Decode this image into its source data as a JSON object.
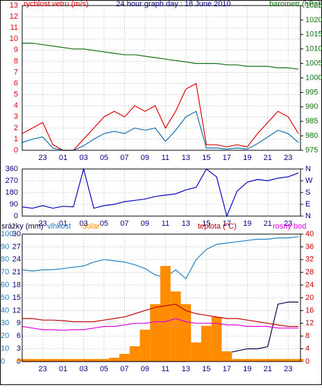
{
  "chart_data": [
    {
      "type": "line",
      "title": "24 hour graph day : 18 June 2010",
      "ylabel": "rychlost vetru (m/s)",
      "y2label": "barometr (hPa)",
      "x": [
        21,
        22,
        23,
        24,
        25,
        26,
        27,
        28,
        29,
        30,
        31,
        32,
        33,
        34,
        35,
        36,
        37,
        38,
        39,
        40,
        41,
        42,
        43,
        44,
        45,
        46,
        47,
        48
      ],
      "xlim": [
        21,
        48.2
      ],
      "xticks": [
        {
          "value": 23,
          "label": "23"
        },
        {
          "value": 25,
          "label": "01"
        },
        {
          "value": 27,
          "label": "03"
        },
        {
          "value": 29,
          "label": "05"
        },
        {
          "value": 31,
          "label": "07"
        },
        {
          "value": 33,
          "label": "09"
        },
        {
          "value": 35,
          "label": "11"
        },
        {
          "value": 37,
          "label": "13"
        },
        {
          "value": 39,
          "label": "15"
        },
        {
          "value": 41,
          "label": "17"
        },
        {
          "value": 43,
          "label": "19"
        },
        {
          "value": 45,
          "label": "21"
        },
        {
          "value": 47,
          "label": "23"
        }
      ],
      "ylim": [
        0,
        13
      ],
      "yticks": [
        0,
        1,
        2,
        3,
        4,
        5,
        6,
        7,
        8,
        9,
        10,
        11,
        12,
        13
      ],
      "y2lim": [
        975,
        1025
      ],
      "y2ticks": [
        975,
        980,
        985,
        990,
        995,
        1000,
        1005,
        1010,
        1015,
        1020,
        1025
      ],
      "grid": true,
      "ycolor": "#e00000",
      "y2color": "#107010",
      "series": [
        {
          "color": "#e00000",
          "values": [
            1.5,
            2,
            2.5,
            0.5,
            0,
            0,
            1,
            2,
            3,
            3.5,
            3,
            4,
            3.5,
            4,
            2,
            3.5,
            5.5,
            6,
            0.5,
            0.5,
            0.3,
            0.5,
            0.3,
            1.5,
            2.5,
            3.5,
            3,
            1.5
          ]
        },
        {
          "color": "#1070b0",
          "values": [
            0.7,
            1,
            1.2,
            0.2,
            0,
            0,
            0.4,
            1,
            1.5,
            1.7,
            1.5,
            2,
            1.8,
            2,
            0.8,
            1.8,
            3,
            3.5,
            0.2,
            0.2,
            0.1,
            0.2,
            0.1,
            0.6,
            1.2,
            1.8,
            1.5,
            0.7
          ]
        },
        {
          "color": "#107010",
          "axis": "y2",
          "values": [
            1012,
            1012,
            1011.5,
            1011,
            1010.5,
            1010,
            1010,
            1009.5,
            1009,
            1008.5,
            1008,
            1008,
            1007.5,
            1007,
            1006.5,
            1006,
            1005.5,
            1005,
            1005,
            1005,
            1004.5,
            1004.5,
            1004,
            1004,
            1004,
            1003.5,
            1003.5,
            1003
          ]
        }
      ]
    },
    {
      "type": "line",
      "x": [
        21,
        22,
        23,
        24,
        25,
        26,
        27,
        28,
        29,
        30,
        31,
        32,
        33,
        34,
        35,
        36,
        37,
        38,
        39,
        40,
        41,
        42,
        43,
        44,
        45,
        46,
        47,
        48
      ],
      "xlim": [
        21,
        48.2
      ],
      "xticks": [
        {
          "value": 23,
          "label": "23"
        },
        {
          "value": 25,
          "label": "01"
        },
        {
          "value": 27,
          "label": "03"
        },
        {
          "value": 29,
          "label": "05"
        },
        {
          "value": 31,
          "label": "07"
        },
        {
          "value": 33,
          "label": "09"
        },
        {
          "value": 35,
          "label": "11"
        },
        {
          "value": 37,
          "label": "13"
        },
        {
          "value": 39,
          "label": "15"
        },
        {
          "value": 41,
          "label": "17"
        },
        {
          "value": 43,
          "label": "19"
        },
        {
          "value": 45,
          "label": "21"
        },
        {
          "value": 47,
          "label": "23"
        }
      ],
      "ylim": [
        0,
        360
      ],
      "yticks": [
        0,
        90,
        180,
        270,
        360
      ],
      "y2lim": [
        0,
        360
      ],
      "y2ticks": [
        {
          "value": 0,
          "label": "N"
        },
        {
          "value": 90,
          "label": "E"
        },
        {
          "value": 180,
          "label": "S"
        },
        {
          "value": 270,
          "label": "W"
        },
        {
          "value": 360,
          "label": "N"
        }
      ],
      "grid": true,
      "ycolor": "#000080",
      "y2color": "#000080",
      "series": [
        {
          "color": "#0000c0",
          "values": [
            70,
            60,
            80,
            60,
            75,
            70,
            360,
            60,
            80,
            90,
            110,
            120,
            130,
            150,
            160,
            170,
            200,
            220,
            360,
            300,
            0,
            190,
            260,
            280,
            270,
            290,
            300,
            330
          ]
        }
      ]
    },
    {
      "type": "line",
      "x": [
        21,
        22,
        23,
        24,
        25,
        26,
        27,
        28,
        29,
        30,
        31,
        32,
        33,
        34,
        35,
        36,
        37,
        38,
        39,
        40,
        41,
        42,
        43,
        44,
        45,
        46,
        47,
        48
      ],
      "xlim": [
        21,
        48.2
      ],
      "xticks": [
        {
          "value": 23,
          "label": "23"
        },
        {
          "value": 25,
          "label": "01"
        },
        {
          "value": 27,
          "label": "03"
        },
        {
          "value": 29,
          "label": "05"
        },
        {
          "value": 31,
          "label": "07"
        },
        {
          "value": 33,
          "label": "09"
        },
        {
          "value": 35,
          "label": "11"
        },
        {
          "value": 37,
          "label": "13"
        },
        {
          "value": 39,
          "label": "15"
        },
        {
          "value": 41,
          "label": "17"
        },
        {
          "value": 43,
          "label": "19"
        },
        {
          "value": 45,
          "label": "21"
        },
        {
          "value": 47,
          "label": "23"
        }
      ],
      "ylim": [
        0,
        100
      ],
      "yticks": [
        0,
        10,
        20,
        30,
        40,
        50,
        60,
        70,
        80,
        90,
        100
      ],
      "y3lim": [
        0,
        30
      ],
      "y3ticks": [
        0,
        3,
        6,
        9,
        12,
        15,
        18,
        21,
        24,
        27,
        30
      ],
      "y2lim": [
        0,
        40
      ],
      "y2ticks": [
        0,
        4,
        8,
        12,
        16,
        20,
        24,
        28,
        32,
        36,
        40
      ],
      "grid": true,
      "ycolor": "#2080c0",
      "y3color": "#000080",
      "y2color": "#c00000",
      "series": [
        {
          "name": "srážky (mm)",
          "color": "#000040",
          "axis": "y3",
          "values": [
            0,
            0,
            0,
            0,
            0,
            0,
            0,
            0,
            0,
            0,
            0,
            0,
            0,
            0,
            0,
            0,
            0,
            0.5,
            1,
            1.5,
            2,
            2.5,
            3,
            3,
            3.5,
            13.5,
            14,
            14
          ]
        },
        {
          "name": "vlhkost",
          "color": "#2080c0",
          "values": [
            72,
            71,
            72,
            72,
            73,
            74,
            75,
            78,
            80,
            79,
            78,
            76,
            73,
            68,
            66,
            72,
            65,
            80,
            88,
            92,
            93,
            94,
            95,
            96,
            96,
            97,
            97,
            98
          ]
        },
        {
          "name": "Solar",
          "type": "bar",
          "color": "#ff8c00",
          "values": [
            2,
            2,
            2,
            2,
            2,
            2,
            2,
            2,
            2,
            3,
            6,
            12,
            25,
            45,
            75,
            55,
            45,
            15,
            28,
            35,
            8,
            2,
            2,
            2,
            2,
            2,
            2,
            2
          ]
        },
        {
          "name": "teplota (°C)",
          "color": "#c00000",
          "axis": "y2",
          "values": [
            13.5,
            13.5,
            13,
            13,
            12.8,
            12.5,
            12.5,
            12.5,
            13,
            13.5,
            14,
            15,
            16,
            17,
            17.5,
            18,
            16,
            15,
            14.5,
            14,
            13.5,
            13.5,
            13,
            12.5,
            12,
            11.5,
            11,
            11
          ]
        },
        {
          "name": "rosný bod",
          "color": "#e000e0",
          "axis": "y2",
          "values": [
            11,
            10.5,
            10,
            10,
            9.8,
            10,
            10,
            10.5,
            11,
            11,
            11.5,
            12,
            12,
            12.5,
            12.5,
            13.5,
            12.5,
            12,
            12,
            12,
            11.5,
            11.5,
            11,
            11,
            11,
            10.5,
            10.5,
            10.5
          ]
        }
      ]
    }
  ]
}
